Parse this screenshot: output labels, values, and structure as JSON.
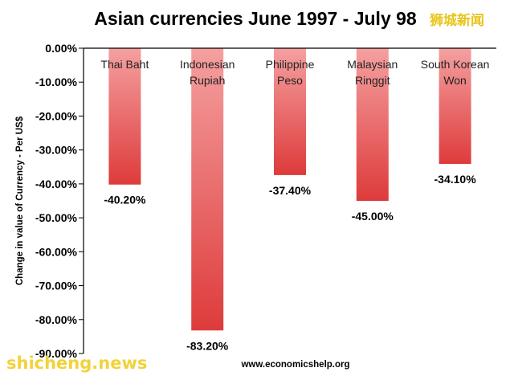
{
  "watermark_top": "狮城新闻",
  "watermark_bottom": "shicheng.news",
  "source": "www.economicshelp.org",
  "colors": {
    "bar_light": "#f5a0a0",
    "bar_dark": "#de3b3b",
    "axis": "#000000"
  },
  "chart_data": {
    "type": "bar",
    "title": "Asian currencies June 1997 - July 98",
    "ylabel": "Change in value of Currency - Per US$",
    "xlabel": "",
    "ylim": [
      -90,
      0
    ],
    "yticks": [
      0,
      -10,
      -20,
      -30,
      -40,
      -50,
      -60,
      -70,
      -80,
      -90
    ],
    "ytick_labels": [
      "0.00%",
      "-10.00%",
      "-20.00%",
      "-30.00%",
      "-40.00%",
      "-50.00%",
      "-60.00%",
      "-70.00%",
      "-80.00%",
      "-90.00%"
    ],
    "categories": [
      [
        "Thai Baht"
      ],
      [
        "Indonesian",
        "Rupiah"
      ],
      [
        "Philippine",
        "Peso"
      ],
      [
        "Malaysian",
        "Ringgit"
      ],
      [
        "South Korean",
        "Won"
      ]
    ],
    "values": [
      -40.2,
      -83.2,
      -37.4,
      -45.0,
      -34.1
    ],
    "value_labels": [
      "-40.20%",
      "-83.20%",
      "-37.40%",
      "-45.00%",
      "-34.10%"
    ],
    "grid": false,
    "legend": "none"
  }
}
